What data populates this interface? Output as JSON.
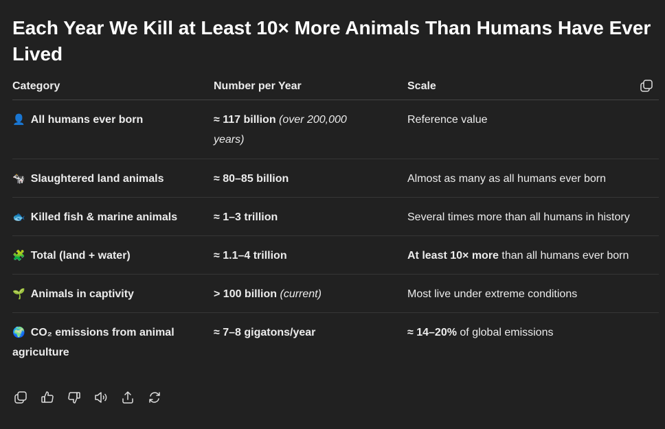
{
  "title": "Each Year We Kill at Least 10× More Animals Than Humans Have Ever Lived",
  "table": {
    "headers": [
      "Category",
      "Number per Year",
      "Scale"
    ],
    "rows": [
      {
        "emoji": "👤",
        "category": "All humans ever born",
        "number_bold": "≈ 117 billion",
        "number_italic": "(over 200,000 years)",
        "scale_bold": "",
        "scale": "Reference value"
      },
      {
        "emoji": "🐄",
        "category": "Slaughtered land animals",
        "number_bold": "≈ 80–85 billion",
        "number_italic": "",
        "scale_bold": "",
        "scale": "Almost as many as all humans ever born"
      },
      {
        "emoji": "🐟",
        "category": "Killed fish & marine animals",
        "number_bold": "≈ 1–3 trillion",
        "number_italic": "",
        "scale_bold": "",
        "scale": "Several times more than all humans in history"
      },
      {
        "emoji": "🧩",
        "category": "Total (land + water)",
        "number_bold": "≈ 1.1–4 trillion",
        "number_italic": "",
        "scale_bold": "At least 10× more",
        "scale": "than all humans ever born"
      },
      {
        "emoji": "🌱",
        "category": "Animals in captivity",
        "number_bold": "> 100 billion",
        "number_italic": "(current)",
        "scale_bold": "",
        "scale": "Most live under extreme conditions"
      },
      {
        "emoji": "🌍",
        "category": "CO₂ emissions from animal agriculture",
        "number_bold": "≈ 7–8 gigatons/year",
        "number_italic": "",
        "scale_bold": "≈ 14–20%",
        "scale": "of global emissions"
      }
    ]
  },
  "icons": {
    "table_copy": "copy-icon",
    "actions": [
      "copy-icon",
      "thumbs-up-icon",
      "thumbs-down-icon",
      "speaker-icon",
      "share-icon",
      "regenerate-icon"
    ]
  }
}
